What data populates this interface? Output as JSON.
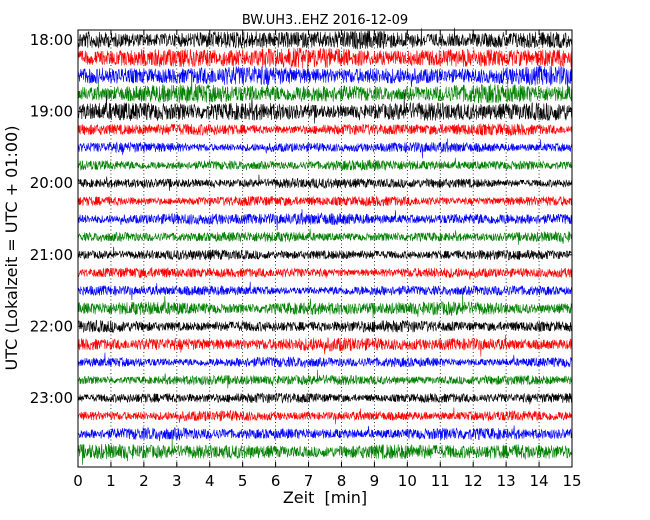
{
  "chart_data": {
    "type": "line",
    "title": "BW.UH3..EHZ 2016-12-09",
    "xlabel": "Zeit  [min]",
    "ylabel": "UTC (Lokalzeit = UTC + 01:00)",
    "xlim": [
      0,
      15
    ],
    "x_ticks": [
      "0",
      "1",
      "2",
      "3",
      "4",
      "5",
      "6",
      "7",
      "8",
      "9",
      "10",
      "11",
      "12",
      "13",
      "14",
      "15"
    ],
    "y_ticks": [
      "18:00",
      "19:00",
      "20:00",
      "21:00",
      "22:00",
      "23:00"
    ],
    "grid": {
      "x": true,
      "y": false
    },
    "trace_colors": [
      "#000000",
      "#ff0000",
      "#0000ff",
      "#008000"
    ],
    "traces": [
      {
        "start": "18:00",
        "amplitude": 0.55
      },
      {
        "start": "18:15",
        "amplitude": 0.6
      },
      {
        "start": "18:30",
        "amplitude": 0.55
      },
      {
        "start": "18:45",
        "amplitude": 0.55
      },
      {
        "start": "19:00",
        "amplitude": 0.55
      },
      {
        "start": "19:15",
        "amplitude": 0.35
      },
      {
        "start": "19:30",
        "amplitude": 0.3
      },
      {
        "start": "19:45",
        "amplitude": 0.3
      },
      {
        "start": "20:00",
        "amplitude": 0.3
      },
      {
        "start": "20:15",
        "amplitude": 0.3
      },
      {
        "start": "20:30",
        "amplitude": 0.35
      },
      {
        "start": "20:45",
        "amplitude": 0.3
      },
      {
        "start": "21:00",
        "amplitude": 0.3
      },
      {
        "start": "21:15",
        "amplitude": 0.3
      },
      {
        "start": "21:30",
        "amplitude": 0.3
      },
      {
        "start": "21:45",
        "amplitude": 0.4
      },
      {
        "start": "22:00",
        "amplitude": 0.35
      },
      {
        "start": "22:15",
        "amplitude": 0.4
      },
      {
        "start": "22:30",
        "amplitude": 0.3
      },
      {
        "start": "22:45",
        "amplitude": 0.3
      },
      {
        "start": "23:00",
        "amplitude": 0.3
      },
      {
        "start": "23:15",
        "amplitude": 0.3
      },
      {
        "start": "23:30",
        "amplitude": 0.35
      },
      {
        "start": "23:45",
        "amplitude": 0.45
      }
    ]
  }
}
